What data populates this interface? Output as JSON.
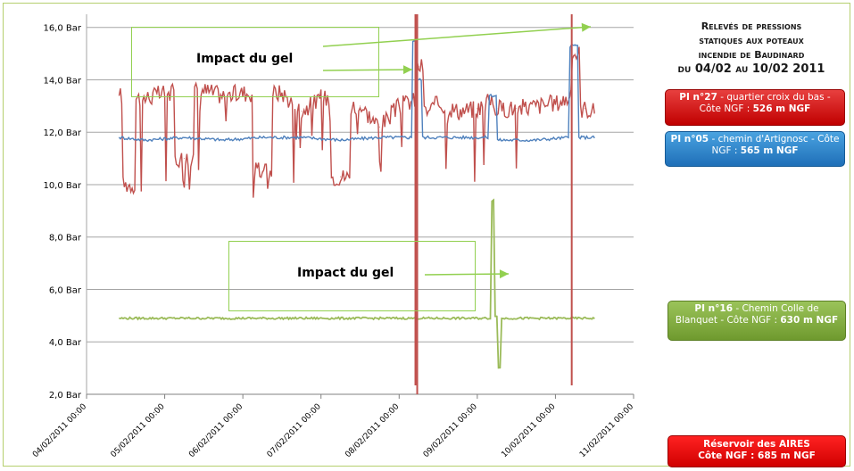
{
  "chart_data": {
    "type": "line",
    "title": "Relevés de pressions statiques aux poteaux incendie de Baudinard du 04/02 au 10/02 2011",
    "title_lines": [
      "Relevés de pressions",
      "statiques aux poteaux",
      "incendie de Baudinard",
      "du 04/02 au 10/02 2011"
    ],
    "xlabel": "",
    "ylabel": "",
    "ylim": [
      2,
      16.5
    ],
    "y_ticks": [
      "2,0 Bar",
      "4,0 Bar",
      "6,0 Bar",
      "8,0 Bar",
      "10,0 Bar",
      "12,0 Bar",
      "14,0 Bar",
      "16,0 Bar"
    ],
    "y_tick_values": [
      2,
      4,
      6,
      8,
      10,
      12,
      14,
      16
    ],
    "x_ticks": [
      "04/02/2011 00:00",
      "05/02/2011 00:00",
      "06/02/2011 00:00",
      "07/02/2011 00:00",
      "08/02/2011 00:00",
      "09/02/2011 00:00",
      "10/02/2011 00:00",
      "11/02/2011 00:00"
    ],
    "x_start": "04/02/2011 00:00",
    "x_end": "11/02/2011 00:00",
    "grid": true,
    "series": [
      {
        "name": "PI n°27 - quartier croix du bas - Côte NGF : 526 m NGF",
        "color": "#c0504d",
        "x": [
          "04/02/2011 10:00",
          "04/02/2011 12:00",
          "04/02/2011 18:00",
          "05/02/2011 00:00",
          "05/02/2011 06:00",
          "05/02/2011 12:00",
          "05/02/2011 18:00",
          "06/02/2011 00:00",
          "06/02/2011 06:00",
          "06/02/2011 12:00",
          "06/02/2011 18:00",
          "07/02/2011 00:00",
          "07/02/2011 06:00",
          "07/02/2011 12:00",
          "07/02/2011 18:00",
          "08/02/2011 00:00",
          "08/02/2011 04:00",
          "08/02/2011 06:00",
          "08/02/2011 09:00",
          "08/02/2011 12:00",
          "08/02/2011 18:00",
          "09/02/2011 00:00",
          "09/02/2011 04:00",
          "09/02/2011 06:00",
          "09/02/2011 12:00",
          "09/02/2011 18:00",
          "10/02/2011 00:00",
          "10/02/2011 04:00",
          "10/02/2011 06:00",
          "10/02/2011 09:00",
          "10/02/2011 12:00"
        ],
        "values": [
          13.4,
          10.0,
          13.3,
          13.5,
          11.0,
          13.6,
          13.4,
          13.5,
          10.5,
          13.5,
          12.8,
          13.3,
          10.3,
          13.0,
          12.2,
          13.0,
          13.2,
          14.5,
          12.8,
          13.1,
          12.8,
          12.9,
          13.2,
          12.9,
          12.9,
          13.0,
          13.1,
          13.3,
          15.0,
          12.9,
          12.8
        ]
      },
      {
        "name": "PI n°05 - chemin d'Artignosc - Côte NGF : 565 m NGF",
        "color": "#4f81bd",
        "x": [
          "04/02/2011 10:00",
          "04/02/2011 18:00",
          "05/02/2011 06:00",
          "05/02/2011 18:00",
          "06/02/2011 06:00",
          "06/02/2011 18:00",
          "07/02/2011 06:00",
          "07/02/2011 18:00",
          "08/02/2011 03:00",
          "08/02/2011 05:00",
          "08/02/2011 06:00",
          "08/02/2011 08:00",
          "08/02/2011 18:00",
          "09/02/2011 02:00",
          "09/02/2011 05:00",
          "09/02/2011 07:00",
          "09/02/2011 18:00",
          "10/02/2011 04:00",
          "10/02/2011 05:00",
          "10/02/2011 06:00",
          "10/02/2011 08:00",
          "10/02/2011 12:00"
        ],
        "values": [
          11.8,
          11.7,
          11.8,
          11.7,
          11.8,
          11.8,
          11.7,
          11.8,
          11.8,
          15.5,
          14.0,
          11.8,
          11.8,
          11.8,
          13.4,
          11.7,
          11.7,
          11.8,
          15.3,
          15.3,
          11.8,
          11.8
        ]
      },
      {
        "name": "PI n°16 - Chemin Colle de Blanquet - Côte NGF : 630 m NGF",
        "color": "#9bbb59",
        "x": [
          "04/02/2011 10:00",
          "05/02/2011 00:00",
          "06/02/2011 00:00",
          "07/02/2011 00:00",
          "08/02/2011 00:00",
          "09/02/2011 00:00",
          "09/02/2011 04:00",
          "09/02/2011 05:00",
          "09/02/2011 06:00",
          "09/02/2011 07:00",
          "09/02/2011 08:00",
          "10/02/2011 00:00",
          "10/02/2011 12:00"
        ],
        "values": [
          4.9,
          4.9,
          4.9,
          4.9,
          4.9,
          4.9,
          4.9,
          9.4,
          5.0,
          3.0,
          4.9,
          4.9,
          4.9
        ]
      },
      {
        "name": "Réservoir des AIRES Côte NGF : 685 m NGF",
        "color": "#c0504d",
        "x": [
          "08/02/2011 05:00",
          "10/02/2011 05:00"
        ],
        "values": [
          16.5,
          16.5
        ]
      }
    ],
    "annotations": [
      "Impact du gel",
      "Impact du gel"
    ]
  },
  "legend": {
    "red": {
      "bold": "PI n°27",
      "rest": " - quartier croix du bas - Côte NGF :",
      "bold2": "526 m NGF"
    },
    "blue": {
      "bold": "PI n°05",
      "rest": " - chemin d'Artignosc - Côte NGF :",
      "bold2": "565 m NGF"
    },
    "green": {
      "bold": "PI n°16",
      "rest": " - Chemin Colle de Blanquet - Côte NGF :",
      "bold2": "630 m NGF"
    },
    "reservoir": {
      "line1": "Réservoir des AIRES",
      "line2": "Côte NGF : 685 m NGF"
    }
  },
  "annotation_labels": {
    "top": "Impact du gel",
    "bottom": "Impact du gel"
  },
  "colors": {
    "red": "#c0504d",
    "blue": "#4f81bd",
    "green": "#9bbb59",
    "reservoir": "#c0504d",
    "annotation": "#92d050"
  }
}
